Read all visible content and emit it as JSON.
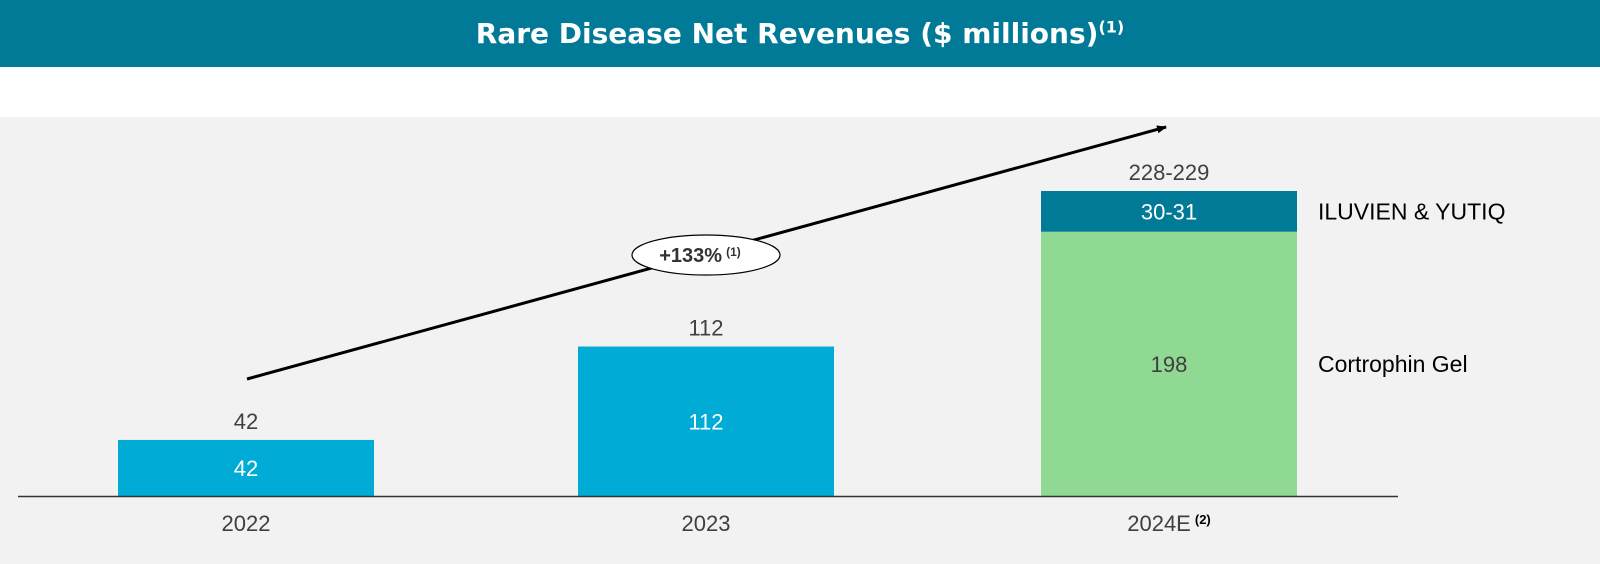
{
  "header": {
    "title": "Rare Disease Net Revenues ($ millions)",
    "title_footnote": "(1)"
  },
  "colors": {
    "banner": "#007a96",
    "panel": "#f2f2f2",
    "bar_blue": "#00acd6",
    "bar_green": "#90d993",
    "bar_teal": "#007a96"
  },
  "chart_data": {
    "type": "bar",
    "stacked": true,
    "title": "Rare Disease Net Revenues ($ millions)",
    "categories": [
      "2022",
      "2023",
      "2024E"
    ],
    "category_footnotes": [
      "",
      "",
      "(2)"
    ],
    "ylim": [
      0,
      242
    ],
    "grid": false,
    "legend": "right",
    "totals": [
      "42",
      "112",
      "228-229"
    ],
    "segments": [
      {
        "category": "2022",
        "value": 42,
        "label": "42",
        "color": "#00acd6"
      },
      {
        "category": "2023",
        "value": 112,
        "label": "112",
        "color": "#00acd6"
      },
      {
        "category": "2024E",
        "series": "Cortrophin Gel",
        "value": 198,
        "label": "198",
        "color": "#90d993"
      },
      {
        "category": "2024E",
        "series": "ILUVIEN & YUTIQ",
        "value": 30.5,
        "label": "30-31",
        "color": "#007a96"
      }
    ],
    "series_labels": [
      "ILUVIEN & YUTIQ",
      "Cortrophin Gel"
    ],
    "annotation": {
      "text": "+133%",
      "footnote": "(1)"
    }
  }
}
